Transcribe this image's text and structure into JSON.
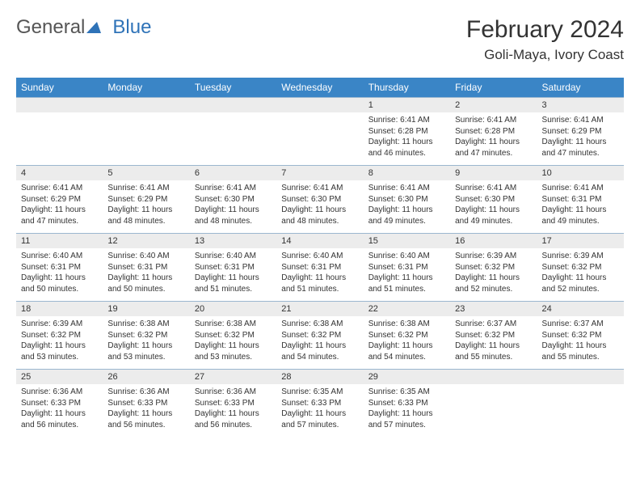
{
  "logo": {
    "part1": "General",
    "part2": "Blue"
  },
  "title": "February 2024",
  "location": "Goli-Maya, Ivory Coast",
  "colors": {
    "header_bg": "#3a85c6",
    "header_fg": "#ffffff",
    "daynum_bg": "#ececec",
    "border": "#9bb7cf",
    "logo_gray": "#555555",
    "logo_blue": "#2f73b8"
  },
  "weekdays": [
    "Sunday",
    "Monday",
    "Tuesday",
    "Wednesday",
    "Thursday",
    "Friday",
    "Saturday"
  ],
  "weeks": [
    [
      {
        "day": "",
        "sunrise": "",
        "sunset": "",
        "daylight1": "",
        "daylight2": ""
      },
      {
        "day": "",
        "sunrise": "",
        "sunset": "",
        "daylight1": "",
        "daylight2": ""
      },
      {
        "day": "",
        "sunrise": "",
        "sunset": "",
        "daylight1": "",
        "daylight2": ""
      },
      {
        "day": "",
        "sunrise": "",
        "sunset": "",
        "daylight1": "",
        "daylight2": ""
      },
      {
        "day": "1",
        "sunrise": "Sunrise: 6:41 AM",
        "sunset": "Sunset: 6:28 PM",
        "daylight1": "Daylight: 11 hours",
        "daylight2": "and 46 minutes."
      },
      {
        "day": "2",
        "sunrise": "Sunrise: 6:41 AM",
        "sunset": "Sunset: 6:28 PM",
        "daylight1": "Daylight: 11 hours",
        "daylight2": "and 47 minutes."
      },
      {
        "day": "3",
        "sunrise": "Sunrise: 6:41 AM",
        "sunset": "Sunset: 6:29 PM",
        "daylight1": "Daylight: 11 hours",
        "daylight2": "and 47 minutes."
      }
    ],
    [
      {
        "day": "4",
        "sunrise": "Sunrise: 6:41 AM",
        "sunset": "Sunset: 6:29 PM",
        "daylight1": "Daylight: 11 hours",
        "daylight2": "and 47 minutes."
      },
      {
        "day": "5",
        "sunrise": "Sunrise: 6:41 AM",
        "sunset": "Sunset: 6:29 PM",
        "daylight1": "Daylight: 11 hours",
        "daylight2": "and 48 minutes."
      },
      {
        "day": "6",
        "sunrise": "Sunrise: 6:41 AM",
        "sunset": "Sunset: 6:30 PM",
        "daylight1": "Daylight: 11 hours",
        "daylight2": "and 48 minutes."
      },
      {
        "day": "7",
        "sunrise": "Sunrise: 6:41 AM",
        "sunset": "Sunset: 6:30 PM",
        "daylight1": "Daylight: 11 hours",
        "daylight2": "and 48 minutes."
      },
      {
        "day": "8",
        "sunrise": "Sunrise: 6:41 AM",
        "sunset": "Sunset: 6:30 PM",
        "daylight1": "Daylight: 11 hours",
        "daylight2": "and 49 minutes."
      },
      {
        "day": "9",
        "sunrise": "Sunrise: 6:41 AM",
        "sunset": "Sunset: 6:30 PM",
        "daylight1": "Daylight: 11 hours",
        "daylight2": "and 49 minutes."
      },
      {
        "day": "10",
        "sunrise": "Sunrise: 6:41 AM",
        "sunset": "Sunset: 6:31 PM",
        "daylight1": "Daylight: 11 hours",
        "daylight2": "and 49 minutes."
      }
    ],
    [
      {
        "day": "11",
        "sunrise": "Sunrise: 6:40 AM",
        "sunset": "Sunset: 6:31 PM",
        "daylight1": "Daylight: 11 hours",
        "daylight2": "and 50 minutes."
      },
      {
        "day": "12",
        "sunrise": "Sunrise: 6:40 AM",
        "sunset": "Sunset: 6:31 PM",
        "daylight1": "Daylight: 11 hours",
        "daylight2": "and 50 minutes."
      },
      {
        "day": "13",
        "sunrise": "Sunrise: 6:40 AM",
        "sunset": "Sunset: 6:31 PM",
        "daylight1": "Daylight: 11 hours",
        "daylight2": "and 51 minutes."
      },
      {
        "day": "14",
        "sunrise": "Sunrise: 6:40 AM",
        "sunset": "Sunset: 6:31 PM",
        "daylight1": "Daylight: 11 hours",
        "daylight2": "and 51 minutes."
      },
      {
        "day": "15",
        "sunrise": "Sunrise: 6:40 AM",
        "sunset": "Sunset: 6:31 PM",
        "daylight1": "Daylight: 11 hours",
        "daylight2": "and 51 minutes."
      },
      {
        "day": "16",
        "sunrise": "Sunrise: 6:39 AM",
        "sunset": "Sunset: 6:32 PM",
        "daylight1": "Daylight: 11 hours",
        "daylight2": "and 52 minutes."
      },
      {
        "day": "17",
        "sunrise": "Sunrise: 6:39 AM",
        "sunset": "Sunset: 6:32 PM",
        "daylight1": "Daylight: 11 hours",
        "daylight2": "and 52 minutes."
      }
    ],
    [
      {
        "day": "18",
        "sunrise": "Sunrise: 6:39 AM",
        "sunset": "Sunset: 6:32 PM",
        "daylight1": "Daylight: 11 hours",
        "daylight2": "and 53 minutes."
      },
      {
        "day": "19",
        "sunrise": "Sunrise: 6:38 AM",
        "sunset": "Sunset: 6:32 PM",
        "daylight1": "Daylight: 11 hours",
        "daylight2": "and 53 minutes."
      },
      {
        "day": "20",
        "sunrise": "Sunrise: 6:38 AM",
        "sunset": "Sunset: 6:32 PM",
        "daylight1": "Daylight: 11 hours",
        "daylight2": "and 53 minutes."
      },
      {
        "day": "21",
        "sunrise": "Sunrise: 6:38 AM",
        "sunset": "Sunset: 6:32 PM",
        "daylight1": "Daylight: 11 hours",
        "daylight2": "and 54 minutes."
      },
      {
        "day": "22",
        "sunrise": "Sunrise: 6:38 AM",
        "sunset": "Sunset: 6:32 PM",
        "daylight1": "Daylight: 11 hours",
        "daylight2": "and 54 minutes."
      },
      {
        "day": "23",
        "sunrise": "Sunrise: 6:37 AM",
        "sunset": "Sunset: 6:32 PM",
        "daylight1": "Daylight: 11 hours",
        "daylight2": "and 55 minutes."
      },
      {
        "day": "24",
        "sunrise": "Sunrise: 6:37 AM",
        "sunset": "Sunset: 6:32 PM",
        "daylight1": "Daylight: 11 hours",
        "daylight2": "and 55 minutes."
      }
    ],
    [
      {
        "day": "25",
        "sunrise": "Sunrise: 6:36 AM",
        "sunset": "Sunset: 6:33 PM",
        "daylight1": "Daylight: 11 hours",
        "daylight2": "and 56 minutes."
      },
      {
        "day": "26",
        "sunrise": "Sunrise: 6:36 AM",
        "sunset": "Sunset: 6:33 PM",
        "daylight1": "Daylight: 11 hours",
        "daylight2": "and 56 minutes."
      },
      {
        "day": "27",
        "sunrise": "Sunrise: 6:36 AM",
        "sunset": "Sunset: 6:33 PM",
        "daylight1": "Daylight: 11 hours",
        "daylight2": "and 56 minutes."
      },
      {
        "day": "28",
        "sunrise": "Sunrise: 6:35 AM",
        "sunset": "Sunset: 6:33 PM",
        "daylight1": "Daylight: 11 hours",
        "daylight2": "and 57 minutes."
      },
      {
        "day": "29",
        "sunrise": "Sunrise: 6:35 AM",
        "sunset": "Sunset: 6:33 PM",
        "daylight1": "Daylight: 11 hours",
        "daylight2": "and 57 minutes."
      },
      {
        "day": "",
        "sunrise": "",
        "sunset": "",
        "daylight1": "",
        "daylight2": ""
      },
      {
        "day": "",
        "sunrise": "",
        "sunset": "",
        "daylight1": "",
        "daylight2": ""
      }
    ]
  ]
}
